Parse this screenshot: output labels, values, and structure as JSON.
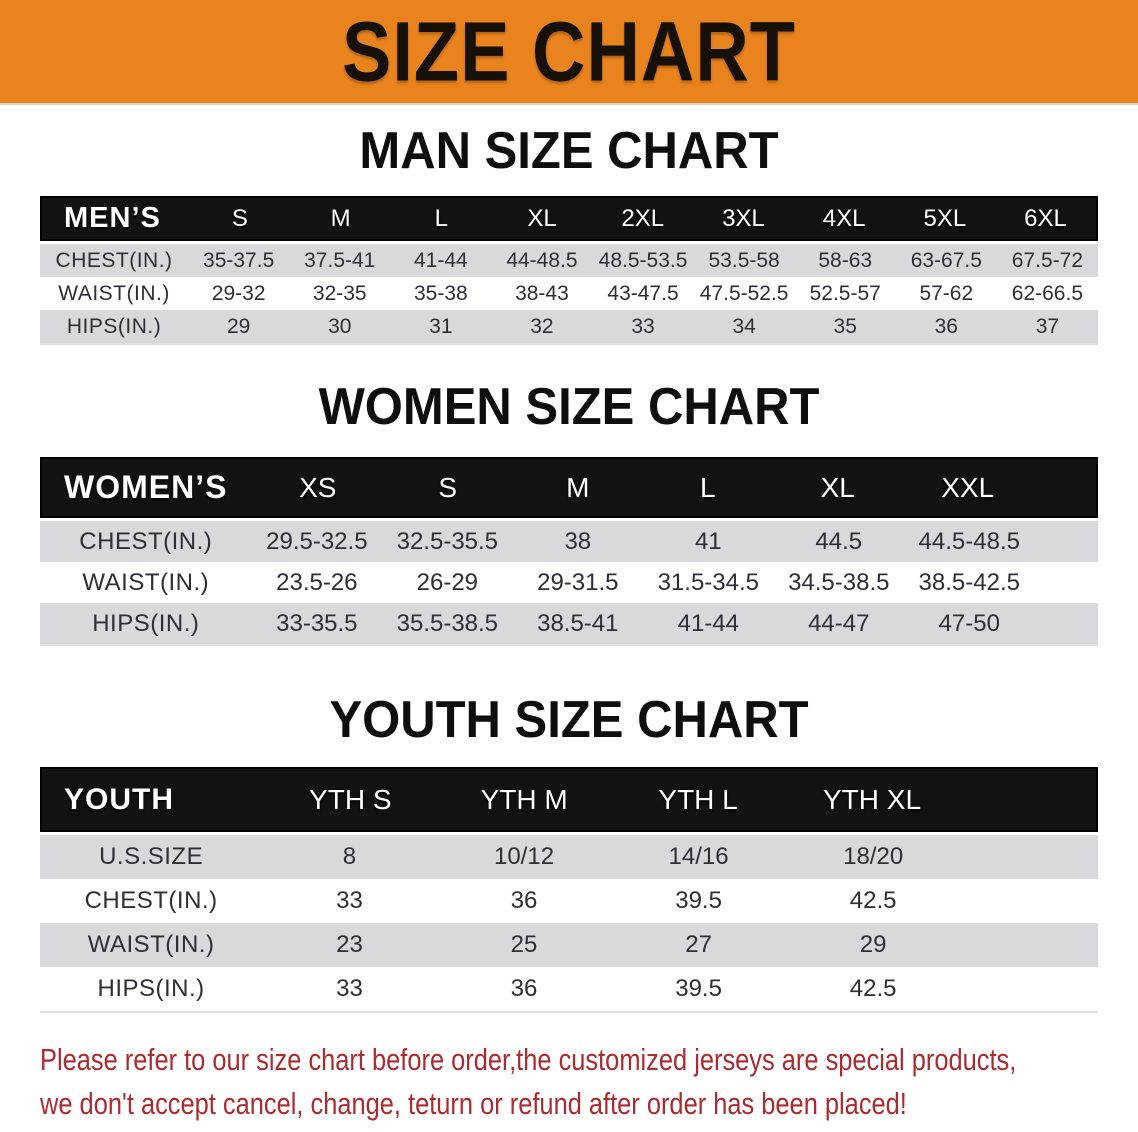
{
  "banner": {
    "title": "SIZE CHART"
  },
  "colors": {
    "banner_bg": "#E8831E",
    "banner_text": "#161006",
    "header_bg": "#121212",
    "header_text": "#FFFFFF",
    "row_gray": "#D9D9DB",
    "row_white": "#FFFFFF",
    "cell_text": "#2E2E38",
    "heading_text": "#0E0E0E",
    "notice_text": "#AB2B30"
  },
  "sections": [
    {
      "id": "men",
      "heading": "MAN SIZE CHART",
      "corner_label": "MEN’S",
      "sizes": [
        "S",
        "M",
        "L",
        "XL",
        "2XL",
        "3XL",
        "4XL",
        "5XL",
        "6XL"
      ],
      "rows": [
        {
          "label": "CHEST(IN.)",
          "values": [
            "35-37.5",
            "37.5-41",
            "41-44",
            "44-48.5",
            "48.5-53.5",
            "53.5-58",
            "58-63",
            "63-67.5",
            "67.5-72"
          ]
        },
        {
          "label": "WAIST(IN.)",
          "values": [
            "29-32",
            "32-35",
            "35-38",
            "38-43",
            "43-47.5",
            "47.5-52.5",
            "52.5-57",
            "57-62",
            "62-66.5"
          ]
        },
        {
          "label": "HIPS(IN.)",
          "values": [
            "29",
            "30",
            "31",
            "32",
            "33",
            "34",
            "35",
            "36",
            "37"
          ]
        }
      ]
    },
    {
      "id": "women",
      "heading": "WOMEN SIZE CHART",
      "corner_label": "WOMEN’S",
      "sizes": [
        "XS",
        "S",
        "M",
        "L",
        "XL",
        "XXL"
      ],
      "rows": [
        {
          "label": "CHEST(IN.)",
          "values": [
            "29.5-32.5",
            "32.5-35.5",
            "38",
            "41",
            "44.5",
            "44.5-48.5"
          ]
        },
        {
          "label": "WAIST(IN.)",
          "values": [
            "23.5-26",
            "26-29",
            "29-31.5",
            "31.5-34.5",
            "34.5-38.5",
            "38.5-42.5"
          ]
        },
        {
          "label": "HIPS(IN.)",
          "values": [
            "33-35.5",
            "35.5-38.5",
            "38.5-41",
            "41-44",
            "44-47",
            "47-50"
          ]
        }
      ]
    },
    {
      "id": "youth",
      "heading": "YOUTH SIZE CHART",
      "corner_label": "YOUTH",
      "sizes": [
        "YTH S",
        "YTH M",
        "YTH L",
        "YTH XL"
      ],
      "rows": [
        {
          "label": "U.S.SIZE",
          "values": [
            "8",
            "10/12",
            "14/16",
            "18/20"
          ]
        },
        {
          "label": "CHEST(IN.)",
          "values": [
            "33",
            "36",
            "39.5",
            "42.5"
          ]
        },
        {
          "label": "WAIST(IN.)",
          "values": [
            "23",
            "25",
            "27",
            "29"
          ]
        },
        {
          "label": "HIPS(IN.)",
          "values": [
            "33",
            "36",
            "39.5",
            "42.5"
          ]
        }
      ]
    }
  ],
  "notice": {
    "line1": "Please refer to our size chart before order,the customized jerseys are special products,",
    "line2": "we don't accept cancel, change, teturn or refund after order has been placed!"
  }
}
